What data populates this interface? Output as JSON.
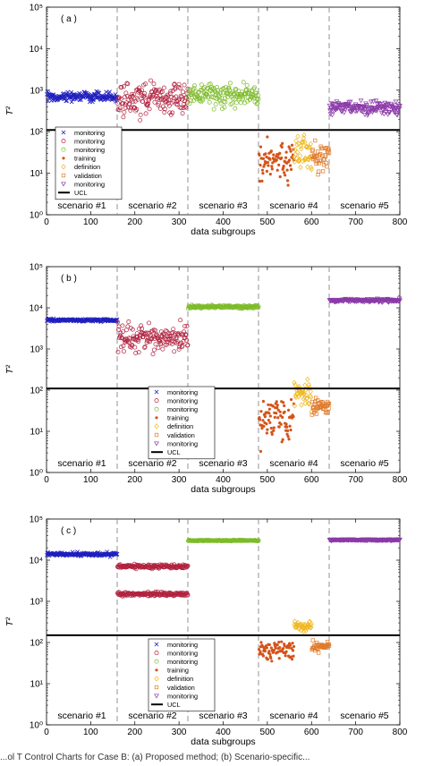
{
  "caption": "...ol T Control Charts for Case B: (a) Proposed method; (b) Scenario-specific...",
  "legend_entries": [
    "monitoring",
    "monitoring",
    "monitoring",
    "training",
    "definition",
    "validation",
    "monitoring",
    "UCL"
  ],
  "colors": {
    "scenario1": "#1f1fbf",
    "scenario2": "#b0223f",
    "scenario3": "#7dbb2a",
    "scenario4_training": "#d4541a",
    "scenario4_definition": "#f0b820",
    "scenario4_validation": "#e07a2a",
    "scenario5": "#8a3aa8",
    "ucl": "#000000",
    "divider": "#888888"
  },
  "chart_data": [
    {
      "type": "scatter",
      "panel_label": "( a )",
      "xlabel": "data subgroups",
      "ylabel": "T²",
      "xlim": [
        0,
        800
      ],
      "ylim": [
        1,
        100000
      ],
      "yscale": "log",
      "xticks": [
        0,
        100,
        200,
        300,
        400,
        500,
        600,
        700,
        800
      ],
      "ytick_labels": [
        "10⁰",
        "10¹",
        "10²",
        "10³",
        "10⁴",
        "10⁵"
      ],
      "ucl": 110,
      "scenario_boundaries": [
        160,
        320,
        480,
        640
      ],
      "scenario_labels": [
        "scenario #1",
        "scenario #2",
        "scenario #3",
        "scenario #4",
        "scenario #5"
      ],
      "legend_placement": "lower-left",
      "series": [
        {
          "name": "monitoring",
          "marker": "x",
          "color": "#1f1fbf",
          "x_range": [
            1,
            160
          ],
          "center": 700,
          "spread": 1.35
        },
        {
          "name": "monitoring",
          "marker": "circle",
          "color": "#b0223f",
          "x_range": [
            161,
            320
          ],
          "center": 600,
          "spread": 2.6
        },
        {
          "name": "monitoring",
          "marker": "circle",
          "color": "#7dbb2a",
          "x_range": [
            321,
            480
          ],
          "center": 750,
          "spread": 2.0
        },
        {
          "name": "training",
          "marker": "dot",
          "color": "#d4541a",
          "x_range": [
            481,
            560
          ],
          "center": 18,
          "spread": 3.5
        },
        {
          "name": "definition",
          "marker": "diamond",
          "color": "#f0b820",
          "x_range": [
            561,
            600
          ],
          "center": 35,
          "spread": 3.0
        },
        {
          "name": "validation",
          "marker": "square",
          "color": "#e07a2a",
          "x_range": [
            601,
            640
          ],
          "center": 25,
          "spread": 2.5
        },
        {
          "name": "monitoring",
          "marker": "triangle",
          "color": "#8a3aa8",
          "x_range": [
            641,
            800
          ],
          "center": 380,
          "spread": 1.5
        }
      ]
    },
    {
      "type": "scatter",
      "panel_label": "( b )",
      "xlabel": "data subgroups",
      "ylabel": "T²",
      "xlim": [
        0,
        800
      ],
      "ylim": [
        1,
        100000
      ],
      "yscale": "log",
      "xticks": [
        0,
        100,
        200,
        300,
        400,
        500,
        600,
        700,
        800
      ],
      "ytick_labels": [
        "10⁰",
        "10¹",
        "10²",
        "10³",
        "10⁴",
        "10⁵"
      ],
      "ucl": 110,
      "scenario_boundaries": [
        160,
        320,
        480,
        640
      ],
      "scenario_labels": [
        "scenario #1",
        "scenario #2",
        "scenario #3",
        "scenario #4",
        "scenario #5"
      ],
      "legend_placement": "lower-center",
      "series": [
        {
          "name": "monitoring",
          "marker": "x",
          "color": "#1f1fbf",
          "x_range": [
            1,
            160
          ],
          "center": 5000,
          "spread": 1.08
        },
        {
          "name": "monitoring",
          "marker": "circle",
          "color": "#b0223f",
          "x_range": [
            161,
            320
          ],
          "center": 1800,
          "spread": 2.2
        },
        {
          "name": "monitoring",
          "marker": "circle",
          "color": "#7dbb2a",
          "x_range": [
            321,
            480
          ],
          "center": 10500,
          "spread": 1.1
        },
        {
          "name": "training",
          "marker": "dot",
          "color": "#d4541a",
          "x_range": [
            481,
            560
          ],
          "center": 20,
          "spread": 3.0
        },
        {
          "name": "definition",
          "marker": "diamond",
          "color": "#f0b820",
          "x_range": [
            561,
            600
          ],
          "center": 80,
          "spread": 2.2
        },
        {
          "name": "validation",
          "marker": "square",
          "color": "#e07a2a",
          "x_range": [
            601,
            640
          ],
          "center": 40,
          "spread": 1.6
        },
        {
          "name": "monitoring",
          "marker": "triangle",
          "color": "#8a3aa8",
          "x_range": [
            641,
            800
          ],
          "center": 15000,
          "spread": 1.1
        }
      ]
    },
    {
      "type": "scatter",
      "panel_label": "( c )",
      "xlabel": "data subgroups",
      "ylabel": "T²",
      "xlim": [
        0,
        800
      ],
      "ylim": [
        1,
        100000
      ],
      "yscale": "log",
      "xticks": [
        0,
        100,
        200,
        300,
        400,
        500,
        600,
        700,
        800
      ],
      "ytick_labels": [
        "10⁰",
        "10¹",
        "10²",
        "10³",
        "10⁴",
        "10⁵"
      ],
      "ucl": 150,
      "scenario_boundaries": [
        160,
        320,
        480,
        640
      ],
      "scenario_labels": [
        "scenario #1",
        "scenario #2",
        "scenario #3",
        "scenario #4",
        "scenario #5"
      ],
      "legend_placement": "lower-center",
      "series": [
        {
          "name": "monitoring",
          "marker": "x",
          "color": "#1f1fbf",
          "x_range": [
            1,
            160
          ],
          "center": 14000,
          "spread": 1.12
        },
        {
          "name": "monitoring",
          "marker": "circle",
          "color": "#b0223f",
          "x_range": [
            161,
            320
          ],
          "center": 7000,
          "spread": 1.12
        },
        {
          "name": "monitoring",
          "marker": "circle",
          "color": "#b0223f",
          "x_range": [
            161,
            320
          ],
          "center": 1500,
          "spread": 1.12
        },
        {
          "name": "monitoring",
          "marker": "circle",
          "color": "#7dbb2a",
          "x_range": [
            321,
            480
          ],
          "center": 30000,
          "spread": 1.03
        },
        {
          "name": "training",
          "marker": "dot",
          "color": "#d4541a",
          "x_range": [
            481,
            560
          ],
          "center": 60,
          "spread": 1.8
        },
        {
          "name": "definition",
          "marker": "diamond",
          "color": "#f0b820",
          "x_range": [
            561,
            600
          ],
          "center": 250,
          "spread": 1.35
        },
        {
          "name": "validation",
          "marker": "square",
          "color": "#e07a2a",
          "x_range": [
            601,
            640
          ],
          "center": 80,
          "spread": 1.4
        },
        {
          "name": "monitoring",
          "marker": "triangle",
          "color": "#8a3aa8",
          "x_range": [
            641,
            800
          ],
          "center": 31000,
          "spread": 1.04
        }
      ]
    }
  ]
}
